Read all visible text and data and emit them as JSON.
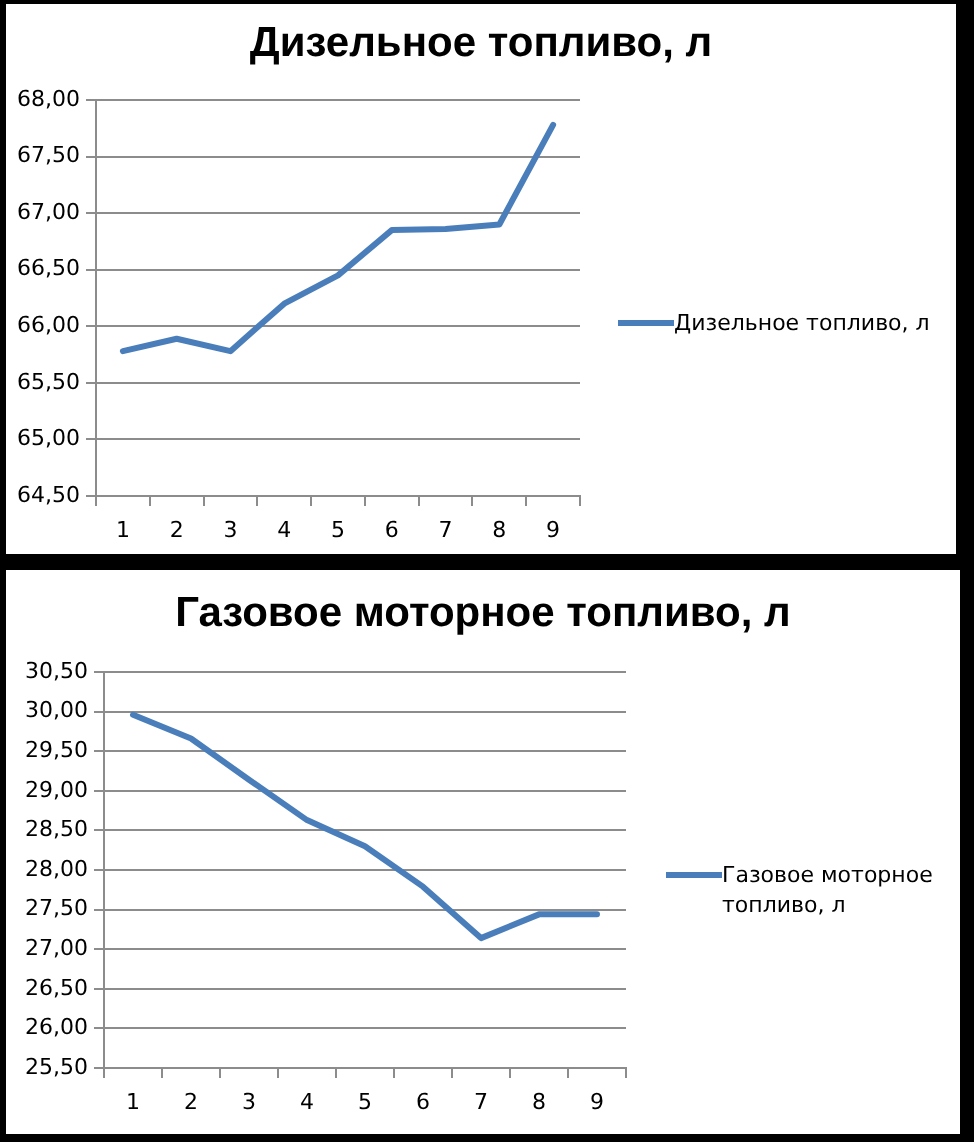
{
  "chart_data": [
    {
      "type": "line",
      "title": "Дизельное топливо, л",
      "categories": [
        "1",
        "2",
        "3",
        "4",
        "5",
        "6",
        "7",
        "8",
        "9"
      ],
      "series": [
        {
          "name": "Дизельное топливо, л",
          "color": "#4a7ebb",
          "values": [
            65.78,
            65.89,
            65.78,
            66.2,
            66.45,
            66.85,
            66.86,
            66.9,
            67.78
          ]
        }
      ],
      "ylim": [
        64.5,
        68
      ],
      "yticks": [
        {
          "value": 64.5,
          "label": "64,50"
        },
        {
          "value": 65,
          "label": "65,00"
        },
        {
          "value": 65.5,
          "label": "65,50"
        },
        {
          "value": 66,
          "label": "66,00"
        },
        {
          "value": 66.5,
          "label": "66,50"
        },
        {
          "value": 67,
          "label": "67,00"
        },
        {
          "value": 67.5,
          "label": "67,50"
        },
        {
          "value": 68,
          "label": "68,00"
        }
      ],
      "grid": "y",
      "legend": "right",
      "marker": "none",
      "line_style": "solid"
    },
    {
      "type": "line",
      "title": "Газовое моторное топливо, л",
      "categories": [
        "1",
        "2",
        "3",
        "4",
        "5",
        "6",
        "7",
        "8",
        "9"
      ],
      "series": [
        {
          "name": "Газовое моторное топливо, л",
          "color": "#4a7ebb",
          "values": [
            29.96,
            29.66,
            29.14,
            28.63,
            28.3,
            27.79,
            27.14,
            27.44,
            27.44
          ]
        }
      ],
      "ylim": [
        25.5,
        30.5
      ],
      "yticks": [
        {
          "value": 25.5,
          "label": "25,50"
        },
        {
          "value": 26,
          "label": "26,00"
        },
        {
          "value": 26.5,
          "label": "26,50"
        },
        {
          "value": 27,
          "label": "27,00"
        },
        {
          "value": 27.5,
          "label": "27,50"
        },
        {
          "value": 28,
          "label": "28,00"
        },
        {
          "value": 28.5,
          "label": "28,50"
        },
        {
          "value": 29,
          "label": "29,00"
        },
        {
          "value": 29.5,
          "label": "29,50"
        },
        {
          "value": 30,
          "label": "30,00"
        },
        {
          "value": 30.5,
          "label": "30,50"
        }
      ],
      "grid": "y",
      "legend": "right",
      "marker": "none",
      "line_style": "solid"
    }
  ]
}
